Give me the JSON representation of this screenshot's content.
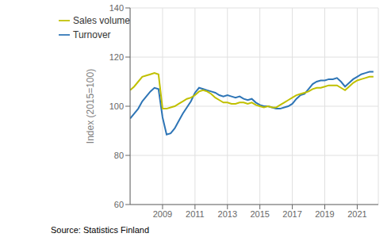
{
  "chart_data": {
    "type": "line",
    "ylabel": "Index (2015=100)",
    "annotations": [
      "Source: Statistics Finland"
    ],
    "x": [
      2007.0,
      2007.25,
      2007.5,
      2007.75,
      2008.0,
      2008.25,
      2008.5,
      2008.75,
      2009.0,
      2009.25,
      2009.5,
      2009.75,
      2010.0,
      2010.25,
      2010.5,
      2010.75,
      2011.0,
      2011.25,
      2011.5,
      2011.75,
      2012.0,
      2012.25,
      2012.5,
      2012.75,
      2013.0,
      2013.25,
      2013.5,
      2013.75,
      2014.0,
      2014.25,
      2014.5,
      2014.75,
      2015.0,
      2015.25,
      2015.5,
      2015.75,
      2016.0,
      2016.25,
      2016.5,
      2016.75,
      2017.0,
      2017.25,
      2017.5,
      2017.75,
      2018.0,
      2018.25,
      2018.5,
      2018.75,
      2019.0,
      2019.25,
      2019.5,
      2019.75,
      2020.0,
      2020.25,
      2020.5,
      2020.75,
      2021.0,
      2021.25,
      2021.5,
      2021.75,
      2022.0
    ],
    "series": [
      {
        "name": "Turnover",
        "color": "#2e75b6",
        "values": [
          95.0,
          97.0,
          99.0,
          102.0,
          104.0,
          106.0,
          107.5,
          107.0,
          95.5,
          88.5,
          89.0,
          91.0,
          94.0,
          97.0,
          99.5,
          102.0,
          105.5,
          107.5,
          107.0,
          106.5,
          106.0,
          105.5,
          104.5,
          104.0,
          104.5,
          104.0,
          103.5,
          104.0,
          103.0,
          102.5,
          103.0,
          101.5,
          100.5,
          100.0,
          100.0,
          99.5,
          99.0,
          99.0,
          99.5,
          100.0,
          101.0,
          103.0,
          104.5,
          105.0,
          107.0,
          109.0,
          110.0,
          110.5,
          110.5,
          111.0,
          111.0,
          111.5,
          110.0,
          108.0,
          109.5,
          111.0,
          112.0,
          113.0,
          113.5,
          114.0,
          114.0
        ]
      },
      {
        "name": "Sales volume",
        "color": "#c0c000",
        "values": [
          106.5,
          108.0,
          110.0,
          112.0,
          112.5,
          113.0,
          113.5,
          113.0,
          99.0,
          99.0,
          99.5,
          100.0,
          101.0,
          102.0,
          103.0,
          103.5,
          104.5,
          106.0,
          106.5,
          106.0,
          105.0,
          103.5,
          102.5,
          101.5,
          101.5,
          101.0,
          101.0,
          101.5,
          101.5,
          101.0,
          101.5,
          100.5,
          100.0,
          99.5,
          100.0,
          99.5,
          99.5,
          100.5,
          101.5,
          102.5,
          103.5,
          104.5,
          105.0,
          105.5,
          106.0,
          107.0,
          107.5,
          107.5,
          108.0,
          108.5,
          108.5,
          108.5,
          107.5,
          106.5,
          108.0,
          109.5,
          110.5,
          111.0,
          111.5,
          112.0,
          112.0
        ]
      }
    ],
    "xlim": [
      2007.0,
      2022.3
    ],
    "xticks": [
      2009,
      2011,
      2013,
      2015,
      2017,
      2019,
      2021
    ],
    "ylim": [
      60,
      140
    ],
    "yticks": [
      60,
      80,
      100,
      120,
      140
    ],
    "grid": true,
    "legend": "upper left"
  }
}
